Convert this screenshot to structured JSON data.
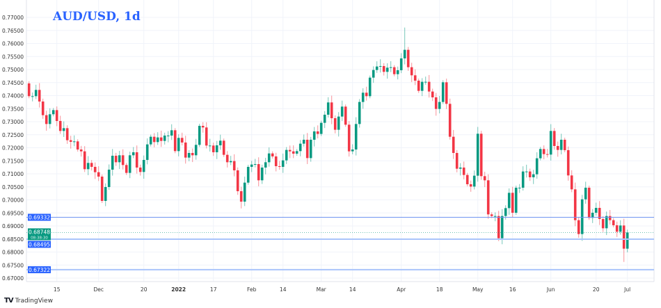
{
  "title": "AUD/USD, 1d",
  "brand": "TradingView",
  "colors": {
    "up": "#089981",
    "down": "#f23645",
    "accent": "#2962ff",
    "level_line": "#6f94f0",
    "level_line_light": "#a9c4fb",
    "grid": "#f0f3fa"
  },
  "chart_data": {
    "type": "candlestick",
    "title": "AUD/USD, 1d",
    "ylim": [
      0.67,
      0.77
    ],
    "y_ticks": [
      "0.77000",
      "0.76500",
      "0.76000",
      "0.75500",
      "0.75000",
      "0.74500",
      "0.74000",
      "0.73500",
      "0.73000",
      "0.72500",
      "0.72000",
      "0.71500",
      "0.71000",
      "0.70500",
      "0.70000",
      "0.69500",
      "0.69000",
      "0.68500",
      "0.68000",
      "0.67500",
      "0.67000"
    ],
    "x_ticks": [
      {
        "label": "15",
        "bar": 8
      },
      {
        "label": "Dec",
        "bar": 20
      },
      {
        "label": "20",
        "bar": 33
      },
      {
        "label": "2022",
        "bar": 43
      },
      {
        "label": "17",
        "bar": 53
      },
      {
        "label": "Feb",
        "bar": 64
      },
      {
        "label": "14",
        "bar": 73
      },
      {
        "label": "Mar",
        "bar": 84
      },
      {
        "label": "14",
        "bar": 93
      },
      {
        "label": "Apr",
        "bar": 107
      },
      {
        "label": "18",
        "bar": 118
      },
      {
        "label": "May",
        "bar": 129
      },
      {
        "label": "16",
        "bar": 139
      },
      {
        "label": "Jun",
        "bar": 150
      },
      {
        "label": "20",
        "bar": 163
      },
      {
        "label": "Jul",
        "bar": 172
      }
    ],
    "first_open": 0.74467,
    "closes": [
      0.73978,
      0.73978,
      0.74218,
      0.73773,
      0.73249,
      0.72911,
      0.73284,
      0.73444,
      0.73027,
      0.72644,
      0.72751,
      0.72289,
      0.72227,
      0.72244,
      0.71933,
      0.71862,
      0.71178,
      0.71418,
      0.71267,
      0.71062,
      0.70893,
      0.6996,
      0.70493,
      0.7116,
      0.71693,
      0.71444,
      0.71711,
      0.71338,
      0.71036,
      0.71711,
      0.71827,
      0.7124,
      0.71071,
      0.71533,
      0.72129,
      0.72422,
      0.72218,
      0.72396,
      0.72262,
      0.72467,
      0.72467,
      0.72671,
      0.71871,
      0.72378,
      0.722,
      0.71622,
      0.718,
      0.71711,
      0.72111,
      0.7284,
      0.72778,
      0.72084,
      0.72084,
      0.71827,
      0.72093,
      0.72271,
      0.71729,
      0.71444,
      0.71489,
      0.71133,
      0.70333,
      0.69933,
      0.70662,
      0.71267,
      0.71356,
      0.71373,
      0.70751,
      0.7124,
      0.71444,
      0.71782,
      0.71667,
      0.71293,
      0.71267,
      0.71516,
      0.71916,
      0.71862,
      0.71773,
      0.71871,
      0.72156,
      0.72307,
      0.71604,
      0.72307,
      0.72627,
      0.7253,
      0.72956,
      0.73267,
      0.73738,
      0.73133,
      0.7269,
      0.73196,
      0.73578,
      0.72884,
      0.71862,
      0.71933,
      0.72911,
      0.73756,
      0.74111,
      0.73978,
      0.74689,
      0.74982,
      0.75116,
      0.75133,
      0.74911,
      0.75071,
      0.75089,
      0.74822,
      0.74973,
      0.75427,
      0.75756,
      0.75089,
      0.74778,
      0.74573,
      0.74182,
      0.74529,
      0.74529,
      0.74156,
      0.73933,
      0.73489,
      0.73756,
      0.74511,
      0.73684,
      0.72422,
      0.718,
      0.71196,
      0.7124,
      0.70956,
      0.706,
      0.70511,
      0.70929,
      0.72538,
      0.70911,
      0.70751,
      0.69444,
      0.69382,
      0.69382,
      0.68529,
      0.69382,
      0.69684,
      0.70271,
      0.69507,
      0.70467,
      0.70467,
      0.71089,
      0.71089,
      0.70867,
      0.70982,
      0.71596,
      0.71951,
      0.71756,
      0.71738,
      0.72644,
      0.72067,
      0.71916,
      0.72307,
      0.71907,
      0.70938,
      0.70404,
      0.69222,
      0.68689,
      0.70022,
      0.70467,
      0.69311,
      0.69507,
      0.69693,
      0.69267,
      0.68911,
      0.69382,
      0.69222,
      0.69027,
      0.68778,
      0.69018,
      0.68129,
      0.68748
    ],
    "notable": {
      "high_apr": 0.7661,
      "low_last": 0.6762
    },
    "levels": [
      {
        "price": 0.69332,
        "label": "0.69332",
        "style": "solid-dark"
      },
      {
        "price": 0.68495,
        "label": "0.68495",
        "style": "solid-light"
      },
      {
        "price": 0.67322,
        "label": "0.67322",
        "style": "solid-light"
      }
    ],
    "last_price": {
      "price": 0.68748,
      "label": "0.68748",
      "countdown": "08:38:30"
    }
  }
}
